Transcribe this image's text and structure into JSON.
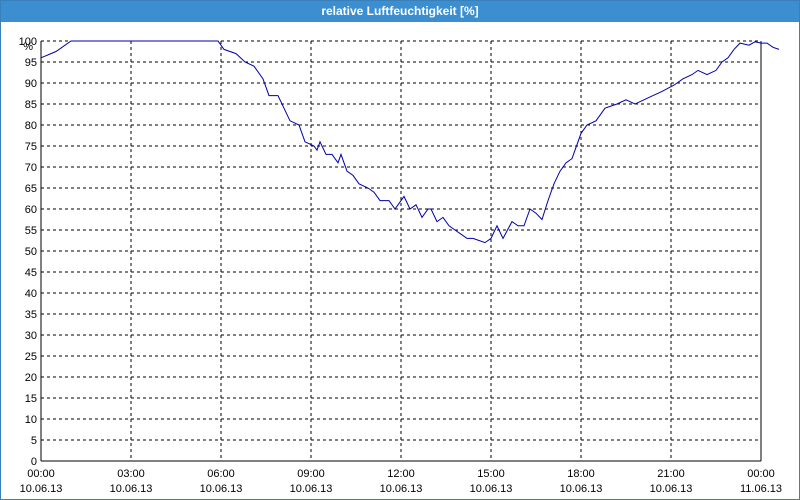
{
  "window": {
    "title": "relative Luftfeuchtigkeit [%]"
  },
  "colors": {
    "titlebar": "#3b8fd0",
    "line": "#0000aa",
    "grid": "#000000"
  },
  "chart_data": {
    "type": "line",
    "title": "relative Luftfeuchtigkeit [%]",
    "ylabel": "%",
    "ylim": [
      0,
      100
    ],
    "y_ticks": [
      0,
      5,
      10,
      15,
      20,
      25,
      30,
      35,
      40,
      45,
      50,
      55,
      60,
      65,
      70,
      75,
      80,
      85,
      90,
      95,
      100
    ],
    "x_ticks": [
      {
        "hours": 0,
        "time": "00:00",
        "date": "10.06.13"
      },
      {
        "hours": 3,
        "time": "03:00",
        "date": "10.06.13"
      },
      {
        "hours": 6,
        "time": "06:00",
        "date": "10.06.13"
      },
      {
        "hours": 9,
        "time": "09:00",
        "date": "10.06.13"
      },
      {
        "hours": 12,
        "time": "12:00",
        "date": "10.06.13"
      },
      {
        "hours": 15,
        "time": "15:00",
        "date": "10.06.13"
      },
      {
        "hours": 18,
        "time": "18:00",
        "date": "10.06.13"
      },
      {
        "hours": 21,
        "time": "21:00",
        "date": "10.06.13"
      },
      {
        "hours": 24,
        "time": "00:00",
        "date": "11.06.13"
      }
    ],
    "grid": true,
    "series": [
      {
        "points": [
          [
            0.0,
            96
          ],
          [
            0.5,
            97.5
          ],
          [
            1.0,
            100
          ],
          [
            2.0,
            100
          ],
          [
            3.0,
            100
          ],
          [
            4.0,
            100
          ],
          [
            5.0,
            100
          ],
          [
            5.9,
            100
          ],
          [
            6.1,
            98
          ],
          [
            6.5,
            97
          ],
          [
            6.8,
            95
          ],
          [
            7.1,
            94
          ],
          [
            7.4,
            91
          ],
          [
            7.6,
            87
          ],
          [
            7.9,
            87
          ],
          [
            8.1,
            84
          ],
          [
            8.3,
            81
          ],
          [
            8.6,
            80
          ],
          [
            8.8,
            76
          ],
          [
            9.1,
            75
          ],
          [
            9.2,
            74
          ],
          [
            9.3,
            76
          ],
          [
            9.5,
            73
          ],
          [
            9.7,
            73
          ],
          [
            9.9,
            71
          ],
          [
            10.0,
            73
          ],
          [
            10.2,
            69
          ],
          [
            10.4,
            68
          ],
          [
            10.6,
            66
          ],
          [
            10.9,
            65
          ],
          [
            11.1,
            64
          ],
          [
            11.3,
            62
          ],
          [
            11.6,
            62
          ],
          [
            11.8,
            60
          ],
          [
            12.1,
            63
          ],
          [
            12.3,
            60
          ],
          [
            12.5,
            61
          ],
          [
            12.7,
            58
          ],
          [
            12.9,
            60
          ],
          [
            13.0,
            60
          ],
          [
            13.2,
            57
          ],
          [
            13.4,
            58
          ],
          [
            13.6,
            56
          ],
          [
            13.8,
            55
          ],
          [
            14.0,
            54
          ],
          [
            14.2,
            53
          ],
          [
            14.4,
            53
          ],
          [
            14.6,
            52.5
          ],
          [
            14.8,
            52
          ],
          [
            15.0,
            53
          ],
          [
            15.2,
            56
          ],
          [
            15.4,
            53
          ],
          [
            15.7,
            57
          ],
          [
            15.9,
            56
          ],
          [
            16.1,
            56
          ],
          [
            16.3,
            60
          ],
          [
            16.5,
            59
          ],
          [
            16.7,
            57.5
          ],
          [
            16.9,
            62
          ],
          [
            17.1,
            66
          ],
          [
            17.3,
            69
          ],
          [
            17.5,
            71
          ],
          [
            17.7,
            72
          ],
          [
            17.8,
            74
          ],
          [
            18.0,
            78
          ],
          [
            18.2,
            80
          ],
          [
            18.5,
            81
          ],
          [
            18.8,
            84
          ],
          [
            19.2,
            85
          ],
          [
            19.5,
            86
          ],
          [
            19.8,
            85
          ],
          [
            20.1,
            86
          ],
          [
            20.4,
            87
          ],
          [
            20.7,
            88
          ],
          [
            21.1,
            89.5
          ],
          [
            21.4,
            91
          ],
          [
            21.7,
            92
          ],
          [
            21.9,
            93
          ],
          [
            22.2,
            92
          ],
          [
            22.5,
            93
          ],
          [
            22.7,
            95
          ],
          [
            22.9,
            96
          ],
          [
            23.1,
            98
          ],
          [
            23.3,
            99.5
          ],
          [
            23.6,
            99
          ],
          [
            23.8,
            99.8
          ],
          [
            24.0,
            99.5
          ],
          [
            24.2,
            99.5
          ],
          [
            24.4,
            98.5
          ],
          [
            24.6,
            98
          ]
        ]
      }
    ]
  }
}
